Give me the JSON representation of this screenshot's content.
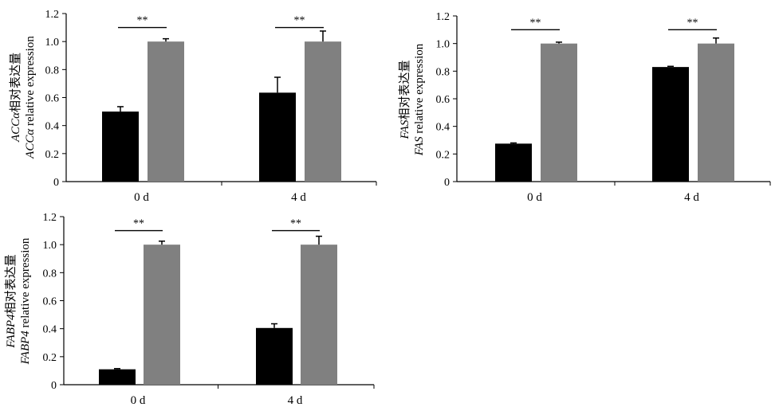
{
  "colors": {
    "black_bar": "#000000",
    "gray_bar": "#808080",
    "axis": "#000000"
  },
  "chart_data": [
    {
      "type": "bar",
      "categories": [
        "0 d",
        "4 d"
      ],
      "series": [
        {
          "values": [
            0.5,
            0.635
          ],
          "errors": [
            0.035,
            0.11
          ],
          "color": "#000000"
        },
        {
          "values": [
            1.0,
            1.0
          ],
          "errors": [
            0.02,
            0.075
          ],
          "color": "#808080"
        }
      ],
      "ylim": [
        0,
        1.2
      ],
      "yticks": [
        "0",
        "0.2",
        "0.4",
        "0.6",
        "0.8",
        "1.0",
        "1.2"
      ],
      "ylabel_gene": "ACCα",
      "ylabel_cn": "相对表达量",
      "ylabel_en": " relative expression",
      "significance": [
        "**",
        "**"
      ]
    },
    {
      "type": "bar",
      "categories": [
        "0 d",
        "4 d"
      ],
      "series": [
        {
          "values": [
            0.275,
            0.83
          ],
          "errors": [
            0.005,
            0.005
          ],
          "color": "#000000"
        },
        {
          "values": [
            1.0,
            1.0
          ],
          "errors": [
            0.01,
            0.04
          ],
          "color": "#808080"
        }
      ],
      "ylim": [
        0,
        1.2
      ],
      "yticks": [
        "0",
        "0.2",
        "0.4",
        "0.6",
        "0.8",
        "1.0",
        "1.2"
      ],
      "ylabel_gene": "FAS",
      "ylabel_cn": "相对表达量",
      "ylabel_en": " relative expression",
      "significance": [
        "**",
        "**"
      ]
    },
    {
      "type": "bar",
      "categories": [
        "0 d",
        "4 d"
      ],
      "series": [
        {
          "values": [
            0.11,
            0.405
          ],
          "errors": [
            0.005,
            0.03
          ],
          "color": "#000000"
        },
        {
          "values": [
            1.0,
            1.0
          ],
          "errors": [
            0.025,
            0.06
          ],
          "color": "#808080"
        }
      ],
      "ylim": [
        0,
        1.2
      ],
      "yticks": [
        "0",
        "0.2",
        "0.4",
        "0.6",
        "0.8",
        "1.0",
        "1.2"
      ],
      "ylabel_gene": "FABP4",
      "ylabel_cn": "相对表达量",
      "ylabel_en": " relative expression",
      "significance": [
        "**",
        "**"
      ]
    }
  ]
}
